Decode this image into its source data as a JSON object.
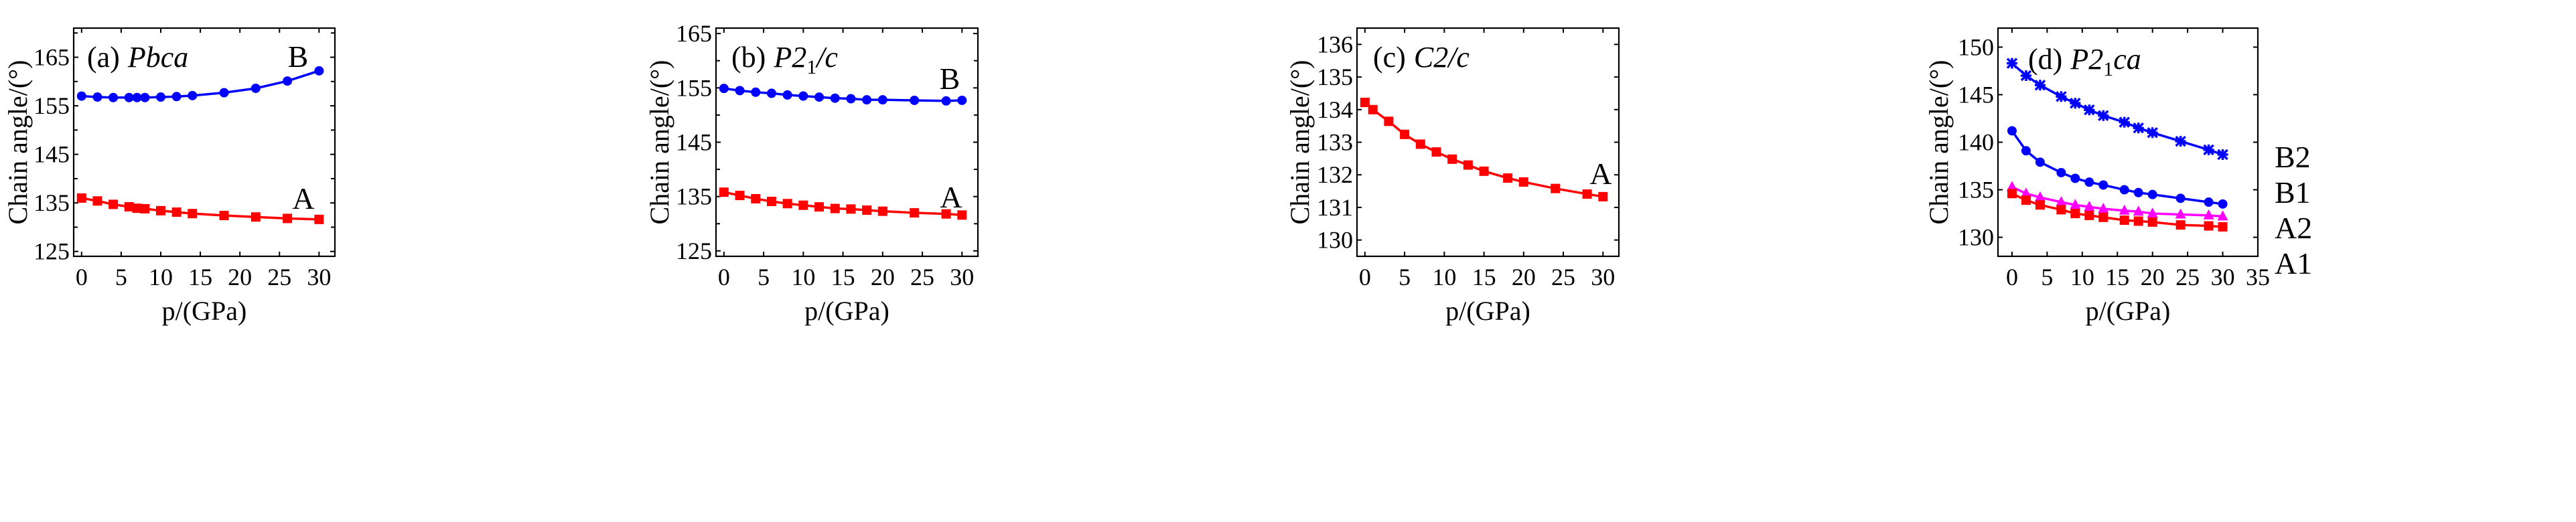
{
  "chart_data": [
    {
      "type": "line",
      "title": "(a) Pbca",
      "title_prefix": "(a)",
      "title_group": "Pbca",
      "xlabel": "p/(GPa)",
      "ylabel": "Chain angle/(°)",
      "xlim": [
        -1,
        32
      ],
      "ylim": [
        124,
        171
      ],
      "xticks": [
        0,
        5,
        10,
        15,
        20,
        25,
        30
      ],
      "yticks_labeled": [
        125,
        135,
        145,
        155,
        165
      ],
      "yticks_minor": [
        130,
        140,
        150,
        160,
        170
      ],
      "grid": false,
      "series": [
        {
          "name": "B",
          "color": "#0000ff",
          "marker": "circle",
          "x": [
            0,
            2,
            4,
            6,
            7,
            8,
            10,
            12,
            14,
            18,
            22,
            26,
            30
          ],
          "y": [
            157.0,
            156.8,
            156.7,
            156.7,
            156.7,
            156.7,
            156.8,
            156.9,
            157.1,
            157.7,
            158.6,
            160.1,
            162.2
          ]
        },
        {
          "name": "A",
          "color": "#ff0000",
          "marker": "square",
          "x": [
            0,
            2,
            4,
            6,
            7,
            8,
            10,
            12,
            14,
            18,
            22,
            26,
            30
          ],
          "y": [
            136.0,
            135.4,
            134.7,
            134.2,
            133.9,
            133.8,
            133.4,
            133.1,
            132.8,
            132.4,
            132.1,
            131.8,
            131.6
          ]
        }
      ]
    },
    {
      "type": "line",
      "title": "(b) P2₁/c",
      "title_prefix": "(b)",
      "title_group": "P2",
      "title_sub": "1",
      "title_group_end": "/c",
      "xlabel": "p/(GPa)",
      "ylabel": "Chain angle/(°)",
      "xlim": [
        -1,
        32
      ],
      "ylim": [
        124,
        166
      ],
      "xticks": [
        0,
        5,
        10,
        15,
        20,
        25,
        30
      ],
      "yticks_labeled": [
        125,
        135,
        145,
        155,
        165
      ],
      "yticks_minor": [
        130,
        140,
        150,
        160
      ],
      "grid": false,
      "series": [
        {
          "name": "B",
          "color": "#0000ff",
          "marker": "circle",
          "x": [
            0,
            2,
            4,
            6,
            8,
            10,
            12,
            14,
            16,
            18,
            20,
            24,
            28,
            30
          ],
          "y": [
            154.9,
            154.5,
            154.2,
            154.0,
            153.7,
            153.5,
            153.3,
            153.1,
            153.0,
            152.8,
            152.8,
            152.7,
            152.6,
            152.7
          ]
        },
        {
          "name": "A",
          "color": "#ff0000",
          "marker": "square",
          "x": [
            0,
            2,
            4,
            6,
            8,
            10,
            12,
            14,
            16,
            18,
            20,
            24,
            28,
            30
          ],
          "y": [
            135.8,
            135.2,
            134.6,
            134.1,
            133.7,
            133.4,
            133.1,
            132.8,
            132.7,
            132.5,
            132.3,
            132.0,
            131.8,
            131.6
          ]
        }
      ]
    },
    {
      "type": "line",
      "title": "(c) C2/c",
      "title_prefix": "(c)",
      "title_group": "C2/c",
      "xlabel": "p/(GPa)",
      "ylabel": "Chain angle/(°)",
      "xlim": [
        -1,
        32
      ],
      "ylim": [
        129.5,
        136.5
      ],
      "xticks": [
        0,
        5,
        10,
        15,
        20,
        25,
        30
      ],
      "yticks_labeled": [
        130,
        131,
        132,
        133,
        134,
        135,
        136
      ],
      "yticks_minor": [],
      "grid": false,
      "series": [
        {
          "name": "A",
          "color": "#ff0000",
          "marker": "square",
          "x": [
            0,
            1,
            3,
            5,
            7,
            9,
            11,
            13,
            15,
            18,
            20,
            24,
            28,
            30
          ],
          "y": [
            134.22,
            134.0,
            133.64,
            133.24,
            132.94,
            132.7,
            132.48,
            132.3,
            132.11,
            131.9,
            131.78,
            131.58,
            131.41,
            131.33
          ]
        }
      ]
    },
    {
      "type": "line",
      "title": "(d) P2₁ca",
      "title_prefix": "(d)",
      "title_group": "P2",
      "title_sub": "1",
      "title_group_end": "ca",
      "xlabel": "p/(GPa)",
      "ylabel": "Chain angle/(°)",
      "xlim": [
        -2,
        35
      ],
      "ylim": [
        128,
        152
      ],
      "xticks": [
        0,
        5,
        10,
        15,
        20,
        25,
        30,
        35
      ],
      "yticks_labeled": [
        130,
        135,
        140,
        145,
        150
      ],
      "yticks_minor": [],
      "grid": false,
      "series": [
        {
          "name": "B2",
          "color": "#0000ff",
          "marker": "asterisk",
          "x": [
            0,
            2,
            4,
            7,
            9,
            11,
            13,
            16,
            18,
            20,
            24,
            28,
            30
          ],
          "y": [
            148.3,
            147.0,
            146.0,
            144.8,
            144.1,
            143.4,
            142.8,
            142.1,
            141.5,
            141.0,
            140.1,
            139.2,
            138.7
          ]
        },
        {
          "name": "B1",
          "color": "#0000ff",
          "marker": "circle",
          "x": [
            0,
            2,
            4,
            7,
            9,
            11,
            13,
            16,
            18,
            20,
            24,
            28,
            30
          ],
          "y": [
            141.2,
            139.1,
            137.9,
            136.8,
            136.2,
            135.8,
            135.5,
            135.0,
            134.7,
            134.5,
            134.1,
            133.7,
            133.5
          ]
        },
        {
          "name": "A2",
          "color": "#ff00ff",
          "marker": "triangle",
          "x": [
            0,
            2,
            4,
            7,
            9,
            11,
            13,
            16,
            18,
            20,
            24,
            28,
            30
          ],
          "y": [
            135.3,
            134.6,
            134.2,
            133.7,
            133.4,
            133.2,
            133.0,
            132.8,
            132.7,
            132.5,
            132.4,
            132.3,
            132.2
          ]
        },
        {
          "name": "A1",
          "color": "#ff0000",
          "marker": "square",
          "x": [
            0,
            2,
            4,
            7,
            9,
            11,
            13,
            16,
            18,
            20,
            24,
            28,
            30
          ],
          "y": [
            134.6,
            133.9,
            133.4,
            132.9,
            132.5,
            132.3,
            132.1,
            131.8,
            131.7,
            131.6,
            131.3,
            131.2,
            131.1
          ]
        }
      ]
    }
  ]
}
